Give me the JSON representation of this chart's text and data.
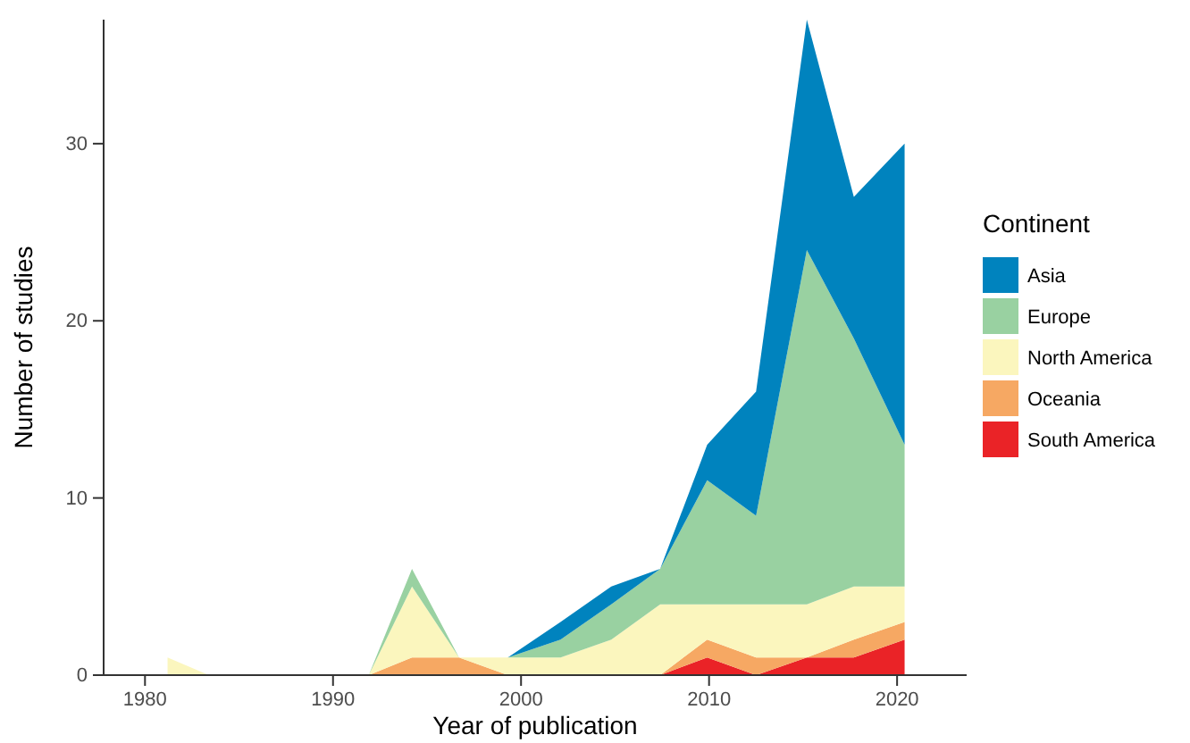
{
  "chart_data": {
    "type": "area",
    "stacked": true,
    "xlabel": "Year of publication",
    "ylabel": "Number of studies",
    "legend_title": "Continent",
    "legend": "right",
    "grid": false,
    "x": [
      1981.2,
      1983.4,
      1991.9,
      1994.2,
      1996.7,
      1999.3,
      2002.1,
      2004.8,
      2007.4,
      2009.9,
      2012.5,
      2015.2,
      2017.7,
      2020.4
    ],
    "xlim": [
      1977.8,
      2023.7
    ],
    "xticks": [
      1980,
      1990,
      2000,
      2010,
      2020
    ],
    "ylim": [
      0,
      37
    ],
    "yticks": [
      0,
      10,
      20,
      30
    ],
    "series": [
      {
        "name": "South America",
        "color": "#ea2327",
        "values": [
          0,
          0,
          0,
          0,
          0,
          0,
          0,
          0,
          0,
          1,
          0,
          1,
          1,
          2
        ]
      },
      {
        "name": "Oceania",
        "color": "#f6a863",
        "values": [
          0,
          0,
          0,
          1,
          1,
          0,
          0,
          0,
          0,
          1,
          1,
          0,
          1,
          1
        ]
      },
      {
        "name": "North America",
        "color": "#fbf6be",
        "values": [
          1,
          0,
          0,
          4,
          0,
          1,
          1,
          2,
          4,
          2,
          3,
          3,
          3,
          2
        ]
      },
      {
        "name": "Europe",
        "color": "#99d1a1",
        "values": [
          0,
          0,
          0,
          1,
          0,
          0,
          1,
          2,
          2,
          7,
          5,
          20,
          14,
          8
        ]
      },
      {
        "name": "Asia",
        "color": "#0083be",
        "values": [
          0,
          0,
          0,
          0,
          0,
          0,
          1,
          1,
          0,
          2,
          7,
          13,
          8,
          17
        ]
      }
    ]
  }
}
